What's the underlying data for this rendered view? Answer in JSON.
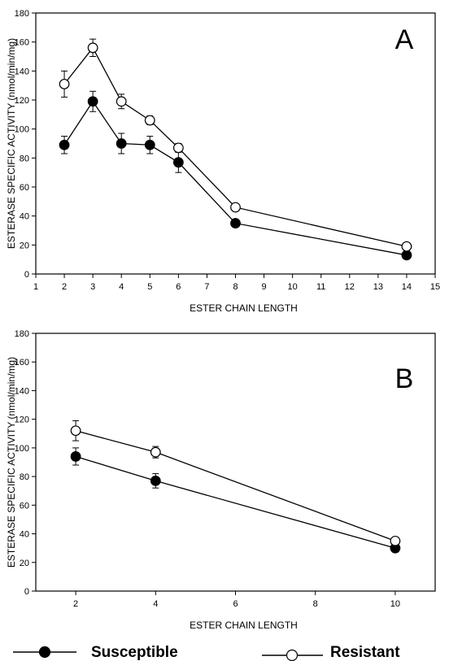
{
  "chart_data": [
    {
      "type": "line",
      "panel_label": "A",
      "x": [
        2,
        3,
        4,
        5,
        6,
        8,
        14
      ],
      "series": [
        {
          "name": "Susceptible",
          "marker": "filled-circle",
          "values": [
            89,
            119,
            90,
            89,
            77,
            35,
            13
          ],
          "errors": [
            6,
            7,
            7,
            6,
            7,
            2,
            2
          ]
        },
        {
          "name": "Resistant",
          "marker": "open-circle",
          "values": [
            131,
            156,
            119,
            106,
            87,
            46,
            19
          ],
          "errors": [
            9,
            6,
            5,
            3,
            3,
            2,
            2
          ]
        }
      ],
      "xlabel": "ESTER CHAIN LENGTH",
      "ylabel": "ESTERASE SPECIFIC ACTIVITY (nmol/min/mg)",
      "xlim": [
        1,
        15
      ],
      "ylim": [
        0,
        180
      ],
      "xticks": [
        1,
        2,
        3,
        4,
        5,
        6,
        7,
        8,
        9,
        10,
        11,
        12,
        13,
        14,
        15
      ],
      "yticks": [
        0,
        20,
        40,
        60,
        80,
        100,
        120,
        140,
        160,
        180
      ],
      "grid": false
    },
    {
      "type": "line",
      "panel_label": "B",
      "x": [
        2,
        4,
        10
      ],
      "series": [
        {
          "name": "Susceptible",
          "marker": "filled-circle",
          "values": [
            94,
            77,
            30
          ],
          "errors": [
            6,
            5,
            2
          ]
        },
        {
          "name": "Resistant",
          "marker": "open-circle",
          "values": [
            112,
            97,
            35
          ],
          "errors": [
            7,
            4,
            2
          ]
        }
      ],
      "xlabel": "ESTER CHAIN LENGTH",
      "ylabel": "ESTERASE SPECIFIC ACTIVITY (nmol/min/mg)",
      "xlim": [
        1,
        11
      ],
      "ylim": [
        0,
        180
      ],
      "xticks": [
        2,
        4,
        6,
        8,
        10
      ],
      "yticks": [
        0,
        20,
        40,
        60,
        80,
        100,
        120,
        140,
        160,
        180
      ],
      "grid": false
    }
  ],
  "legend": {
    "placement": "bottom",
    "items": [
      {
        "label": "Susceptible",
        "marker": "filled-circle"
      },
      {
        "label": "Resistant",
        "marker": "open-circle"
      }
    ]
  }
}
